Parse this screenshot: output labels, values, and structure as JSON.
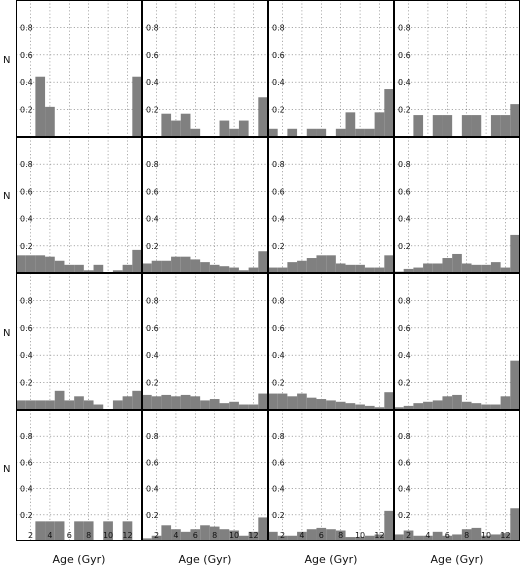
{
  "chart_data": {
    "type": "bar",
    "layout": "4x4 grid of histograms",
    "xlabel": "Age (Gyr)",
    "ylabel": "N",
    "xlim": [
      0.5,
      13.5
    ],
    "ylim": [
      0,
      1.0
    ],
    "xticks": [
      "2",
      "4",
      "6",
      "8",
      "10",
      "12"
    ],
    "yticks": [
      "0.2",
      "0.4",
      "0.6",
      "0.8"
    ],
    "grid": true,
    "bin_width": 1,
    "panels": [
      {
        "row": 1,
        "col": 1,
        "x": [
          3,
          4,
          13
        ],
        "values": [
          0.44,
          0.22,
          0.44
        ]
      },
      {
        "row": 1,
        "col": 2,
        "x": [
          3,
          4,
          5,
          6,
          9,
          10,
          11,
          13
        ],
        "values": [
          0.17,
          0.12,
          0.17,
          0.06,
          0.12,
          0.06,
          0.12,
          0.29
        ]
      },
      {
        "row": 1,
        "col": 3,
        "x": [
          1,
          3,
          5,
          6,
          8,
          9,
          10,
          11,
          12,
          13
        ],
        "values": [
          0.06,
          0.06,
          0.06,
          0.06,
          0.06,
          0.18,
          0.06,
          0.06,
          0.18,
          0.35
        ]
      },
      {
        "row": 1,
        "col": 4,
        "x": [
          3,
          5,
          6,
          8,
          9,
          11,
          12,
          13
        ],
        "values": [
          0.16,
          0.16,
          0.16,
          0.16,
          0.16,
          0.16,
          0.16,
          0.24
        ]
      },
      {
        "row": 2,
        "col": 1,
        "x": [
          1,
          2,
          3,
          4,
          5,
          6,
          7,
          8,
          9,
          10,
          11,
          12,
          13
        ],
        "values": [
          0.13,
          0.13,
          0.13,
          0.12,
          0.09,
          0.06,
          0.06,
          0.02,
          0.06,
          0.0,
          0.02,
          0.06,
          0.17
        ]
      },
      {
        "row": 2,
        "col": 2,
        "x": [
          1,
          2,
          3,
          4,
          5,
          6,
          7,
          8,
          9,
          10,
          11,
          12,
          13
        ],
        "values": [
          0.07,
          0.09,
          0.09,
          0.12,
          0.12,
          0.1,
          0.08,
          0.06,
          0.05,
          0.04,
          0.02,
          0.04,
          0.16
        ]
      },
      {
        "row": 2,
        "col": 3,
        "x": [
          1,
          2,
          3,
          4,
          5,
          6,
          7,
          8,
          9,
          10,
          11,
          12,
          13
        ],
        "values": [
          0.04,
          0.04,
          0.08,
          0.09,
          0.11,
          0.13,
          0.13,
          0.07,
          0.06,
          0.06,
          0.04,
          0.04,
          0.13
        ]
      },
      {
        "row": 2,
        "col": 4,
        "x": [
          1,
          2,
          3,
          4,
          5,
          6,
          7,
          8,
          9,
          10,
          11,
          12,
          13
        ],
        "values": [
          0.01,
          0.03,
          0.04,
          0.07,
          0.07,
          0.11,
          0.14,
          0.07,
          0.06,
          0.06,
          0.08,
          0.04,
          0.28
        ]
      },
      {
        "row": 3,
        "col": 1,
        "x": [
          1,
          2,
          3,
          4,
          5,
          6,
          7,
          8,
          9,
          10,
          11,
          12,
          13
        ],
        "values": [
          0.07,
          0.07,
          0.07,
          0.07,
          0.14,
          0.07,
          0.1,
          0.07,
          0.04,
          0.0,
          0.07,
          0.1,
          0.14
        ]
      },
      {
        "row": 3,
        "col": 2,
        "x": [
          1,
          2,
          3,
          4,
          5,
          6,
          7,
          8,
          9,
          10,
          11,
          12,
          13
        ],
        "values": [
          0.11,
          0.1,
          0.11,
          0.1,
          0.11,
          0.1,
          0.07,
          0.08,
          0.05,
          0.06,
          0.04,
          0.04,
          0.12
        ]
      },
      {
        "row": 3,
        "col": 3,
        "x": [
          1,
          2,
          3,
          4,
          5,
          6,
          7,
          8,
          9,
          10,
          11,
          12,
          13
        ],
        "values": [
          0.12,
          0.12,
          0.1,
          0.12,
          0.09,
          0.08,
          0.07,
          0.06,
          0.05,
          0.04,
          0.03,
          0.02,
          0.13
        ]
      },
      {
        "row": 3,
        "col": 4,
        "x": [
          1,
          2,
          3,
          4,
          5,
          6,
          7,
          8,
          9,
          10,
          11,
          12,
          13
        ],
        "values": [
          0.02,
          0.03,
          0.05,
          0.06,
          0.07,
          0.1,
          0.11,
          0.06,
          0.05,
          0.04,
          0.04,
          0.1,
          0.36
        ]
      },
      {
        "row": 4,
        "col": 1,
        "x": [
          3,
          4,
          5,
          7,
          8,
          10,
          12
        ],
        "values": [
          0.15,
          0.15,
          0.15,
          0.15,
          0.15,
          0.15,
          0.15
        ]
      },
      {
        "row": 4,
        "col": 2,
        "x": [
          1,
          2,
          3,
          4,
          5,
          6,
          7,
          8,
          9,
          10,
          11,
          12,
          13
        ],
        "values": [
          0.02,
          0.04,
          0.12,
          0.09,
          0.07,
          0.09,
          0.12,
          0.11,
          0.09,
          0.08,
          0.04,
          0.07,
          0.18
        ]
      },
      {
        "row": 4,
        "col": 3,
        "x": [
          1,
          2,
          3,
          4,
          5,
          6,
          7,
          8,
          9,
          10,
          11,
          12,
          13
        ],
        "values": [
          0.07,
          0.04,
          0.04,
          0.07,
          0.09,
          0.1,
          0.09,
          0.08,
          0.03,
          0.03,
          0.04,
          0.05,
          0.23
        ]
      },
      {
        "row": 4,
        "col": 4,
        "x": [
          1,
          2,
          3,
          4,
          5,
          6,
          7,
          8,
          9,
          10,
          11,
          12,
          13
        ],
        "values": [
          0.05,
          0.08,
          0.04,
          0.04,
          0.07,
          0.04,
          0.05,
          0.09,
          0.1,
          0.04,
          0.05,
          0.06,
          0.25
        ]
      }
    ]
  },
  "colors": {
    "bar": "#808080",
    "frame": "#000000",
    "grid": "#777777",
    "background": "#ffffff"
  }
}
